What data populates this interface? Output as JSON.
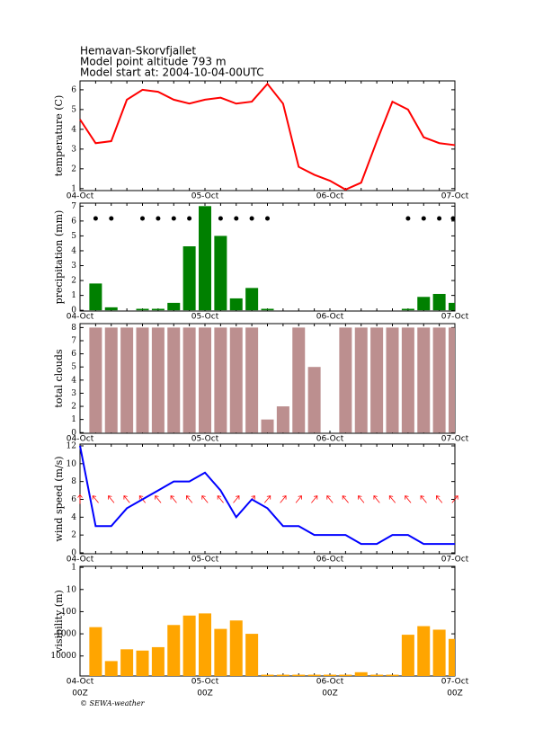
{
  "header": {
    "lines": [
      "Hemavan-Skorvfjallet",
      "Model point altitude  793 m",
      "Model start at: 2004-10-04-00UTC"
    ]
  },
  "footer": "© SEWA-weather",
  "chart_data": [
    {
      "type": "line",
      "y_label": "temperature (C)",
      "x": [
        "04-Oct",
        null,
        null,
        null,
        null,
        null,
        null,
        null,
        "05-Oct",
        null,
        null,
        null,
        null,
        null,
        null,
        null,
        "06-Oct",
        null,
        null,
        null,
        null,
        null,
        null,
        null,
        "07-Oct"
      ],
      "series": [
        {
          "color": "#ff0000",
          "values": [
            4.5,
            3.3,
            3.4,
            5.5,
            6.0,
            5.9,
            5.5,
            5.3,
            5.5,
            5.6,
            5.3,
            5.4,
            6.3,
            5.3,
            2.1,
            1.7,
            1.4,
            0.95,
            1.3,
            3.4,
            5.4,
            5.0,
            3.6,
            3.3,
            3.2
          ]
        }
      ],
      "ylim": [
        0.9,
        6.45
      ],
      "yticks": [
        1,
        2,
        3,
        4,
        5,
        6
      ]
    },
    {
      "type": "bar",
      "y_label": "precipitation (mm)",
      "x": [
        "04-Oct",
        null,
        null,
        null,
        null,
        null,
        null,
        null,
        "05-Oct",
        null,
        null,
        null,
        null,
        null,
        null,
        null,
        "06-Oct",
        null,
        null,
        null,
        null,
        null,
        null,
        null,
        "07-Oct"
      ],
      "series": [
        {
          "color": "#008000",
          "values": [
            null,
            1.8,
            0.2,
            0,
            0.1,
            0.1,
            0.5,
            4.3,
            7.0,
            5.0,
            0.8,
            1.5,
            0.1,
            0,
            0,
            0,
            0,
            0,
            0,
            0,
            0,
            0.1,
            0.9,
            1.1,
            0.5
          ]
        }
      ],
      "ylim": [
        -0.05,
        7.2
      ],
      "yticks": [
        0,
        1,
        2,
        3,
        4,
        5,
        6,
        7
      ]
    },
    {
      "type": "bar",
      "y_label": "total clouds",
      "x": [
        "04-Oct",
        null,
        null,
        null,
        null,
        null,
        null,
        null,
        "05-Oct",
        null,
        null,
        null,
        null,
        null,
        null,
        null,
        "06-Oct",
        null,
        null,
        null,
        null,
        null,
        null,
        null,
        "07-Oct"
      ],
      "series": [
        {
          "color": "#bc8f8f",
          "values": [
            null,
            8,
            8,
            8,
            8,
            8,
            8,
            8,
            8,
            8,
            8,
            8,
            1,
            2,
            8,
            5,
            0,
            8,
            8,
            8,
            8,
            8,
            8,
            8,
            8
          ]
        }
      ],
      "ylim": [
        -0.05,
        8.3
      ],
      "yticks": [
        0,
        1,
        2,
        3,
        4,
        5,
        6,
        7,
        8
      ]
    },
    {
      "type": "line",
      "y_label": "wind speed (m/s)",
      "x": [
        "04-Oct",
        null,
        null,
        null,
        null,
        null,
        null,
        null,
        "05-Oct",
        null,
        null,
        null,
        null,
        null,
        null,
        null,
        "06-Oct",
        null,
        null,
        null,
        null,
        null,
        null,
        null,
        "07-Oct"
      ],
      "series": [
        {
          "color": "#0000ff",
          "values": [
            12,
            3,
            3,
            5,
            6,
            7,
            8,
            8,
            9,
            7,
            4,
            6,
            5,
            3,
            3,
            2,
            2,
            2,
            1,
            1,
            2,
            2,
            1,
            1,
            1
          ]
        }
      ],
      "wind_direction": [
        0,
        -40,
        -40,
        -40,
        -40,
        -40,
        -40,
        -40,
        -40,
        -40,
        40,
        40,
        40,
        40,
        40,
        40,
        -40,
        -40,
        -40,
        -40,
        -40,
        -40,
        -40,
        -40,
        40
      ],
      "arrow_color": "#ff0000",
      "ylim": [
        -0.1,
        12.2
      ],
      "yticks": [
        0,
        2,
        4,
        6,
        8,
        10,
        12
      ]
    },
    {
      "type": "bar",
      "y_label": "visibility (m)",
      "log": true,
      "y_inverted": true,
      "x": [
        "04-Oct",
        null,
        null,
        null,
        null,
        null,
        null,
        null,
        "05-Oct",
        null,
        null,
        null,
        null,
        null,
        null,
        null,
        "06-Oct",
        null,
        null,
        null,
        null,
        null,
        null,
        null,
        "07-Oct"
      ],
      "x_time": [
        "00Z",
        null,
        null,
        null,
        null,
        null,
        null,
        null,
        "00Z",
        null,
        null,
        null,
        null,
        null,
        null,
        null,
        "00Z",
        null,
        null,
        null,
        null,
        null,
        null,
        null,
        "00Z"
      ],
      "series": [
        {
          "color": "#ffa500",
          "values": [
            null,
            500,
            17000,
            5000,
            5700,
            4000,
            400,
            150,
            120,
            600,
            250,
            1000,
            70000,
            70000,
            70000,
            70000,
            70000,
            70000,
            54000,
            70000,
            70000,
            1100,
            450,
            650,
            1700
          ]
        }
      ],
      "ylim": [
        0.9,
        80000
      ],
      "yticks": [
        1,
        10,
        100,
        1000,
        10000
      ]
    }
  ]
}
